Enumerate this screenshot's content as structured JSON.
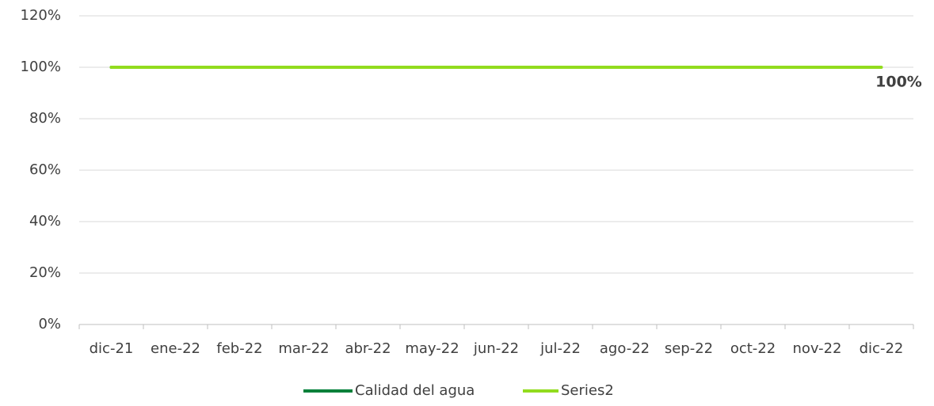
{
  "chart_data": {
    "type": "line",
    "categories": [
      "dic-21",
      "ene-22",
      "feb-22",
      "mar-22",
      "abr-22",
      "may-22",
      "jun-22",
      "jul-22",
      "ago-22",
      "sep-22",
      "oct-22",
      "nov-22",
      "dic-22"
    ],
    "series": [
      {
        "name": "Calidad del agua",
        "color": "#00803a",
        "values": [
          100,
          100,
          100,
          100,
          100,
          100,
          100,
          100,
          100,
          100,
          100,
          100,
          null
        ]
      },
      {
        "name": "Series2",
        "color": "#92dc1e",
        "values": [
          100,
          100,
          100,
          100,
          100,
          100,
          100,
          100,
          100,
          100,
          100,
          100,
          100
        ],
        "value_labels": [
          null,
          null,
          null,
          null,
          null,
          null,
          null,
          null,
          null,
          null,
          null,
          null,
          "100%"
        ]
      }
    ],
    "ylim": [
      0,
      120
    ],
    "yticks": [
      {
        "value": 0,
        "label": "0%"
      },
      {
        "value": 20,
        "label": "20%"
      },
      {
        "value": 40,
        "label": "40%"
      },
      {
        "value": 60,
        "label": "60%"
      },
      {
        "value": 80,
        "label": "80%"
      },
      {
        "value": 100,
        "label": "100%"
      },
      {
        "value": 120,
        "label": "120%"
      }
    ],
    "grid": true,
    "legend": "bottom"
  }
}
